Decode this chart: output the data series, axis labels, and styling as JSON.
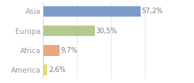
{
  "categories": [
    "America",
    "Africa",
    "Europa",
    "Asia"
  ],
  "values": [
    2.6,
    9.7,
    30.5,
    57.2
  ],
  "labels": [
    "2,6%",
    "9,7%",
    "30,5%",
    "57,2%"
  ],
  "bar_colors": [
    "#e8d87a",
    "#e8a87c",
    "#b5c98e",
    "#7b9cc9"
  ],
  "background_color": "#ffffff",
  "xlim": [
    0,
    75
  ],
  "label_fontsize": 7,
  "tick_fontsize": 7.5,
  "tick_color": "#999999",
  "label_color": "#777777",
  "bar_height": 0.55
}
